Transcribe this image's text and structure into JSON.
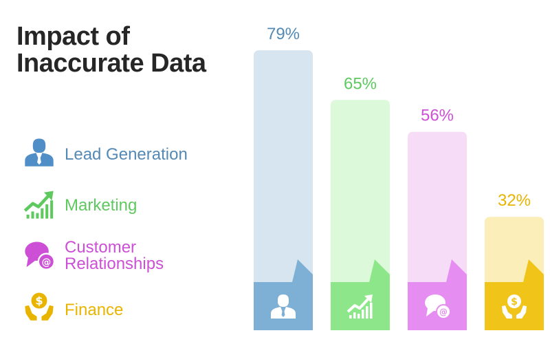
{
  "title": {
    "line1": "Impact of",
    "line2": "Inaccurate Data"
  },
  "legend": {
    "items": [
      {
        "label_lines": [
          "Lead Generation"
        ],
        "icon": "businessman-icon",
        "color": "#5489b4"
      },
      {
        "label_lines": [
          "Marketing"
        ],
        "icon": "growth-chart-icon",
        "color": "#5ec95e"
      },
      {
        "label_lines": [
          "Customer",
          "Relationships"
        ],
        "icon": "chat-email-icon",
        "color": "#cc4fd6"
      },
      {
        "label_lines": [
          "Finance"
        ],
        "icon": "money-hands-icon",
        "color": "#e8b400"
      }
    ]
  },
  "chart_data": {
    "type": "bar",
    "title": "Impact of Inaccurate Data",
    "categories": [
      "Lead Generation",
      "Marketing",
      "Customer Relationships",
      "Finance"
    ],
    "values": [
      79,
      65,
      56,
      32
    ],
    "value_labels": [
      "79%",
      "65%",
      "56%",
      "32%"
    ],
    "unit": "%",
    "ylim": [
      0,
      100
    ],
    "grid": false,
    "legend_position": "left",
    "colors": {
      "bar_light": [
        "#d6e5f0",
        "#dcf9da",
        "#f6dcf7",
        "#fbeeb8"
      ],
      "bar_base": [
        "#7eb0d6",
        "#8ee68a",
        "#e58df0",
        "#f0c419"
      ],
      "label": [
        "#5489b4",
        "#5ec95e",
        "#cc4fd6",
        "#e8b400"
      ]
    },
    "icons": [
      "businessman-icon",
      "growth-chart-icon",
      "chat-email-icon",
      "money-hands-icon"
    ]
  }
}
